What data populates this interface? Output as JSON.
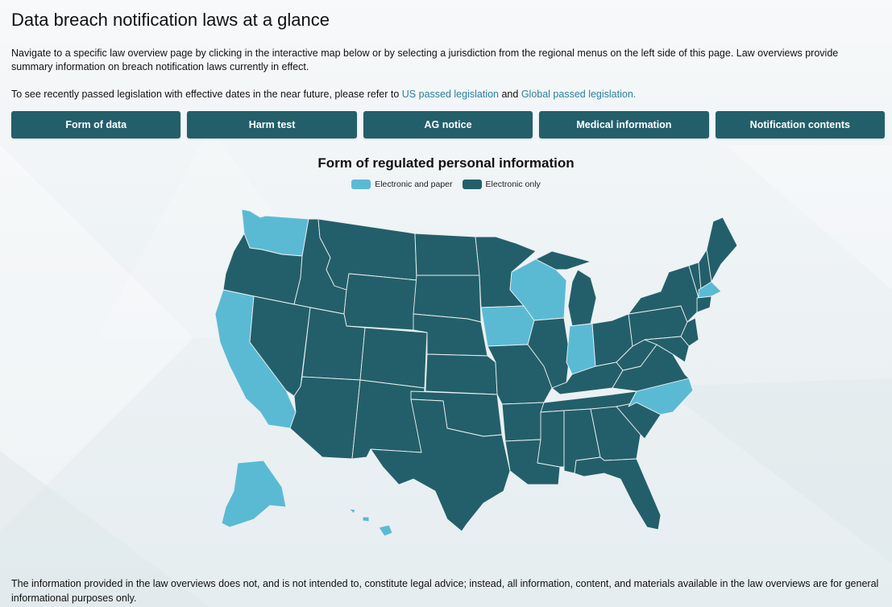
{
  "page": {
    "title": "Data breach notification laws at a glance",
    "intro": "Navigate to a specific law overview page by clicking in the interactive map below or by selecting a jurisdiction from the regional menus on the left side of this page. Law overviews provide summary information on breach notification laws currently in effect.",
    "intro2_prefix": "To see recently passed legislation with effective dates in the near future, please refer to ",
    "link_us": "US passed legislation",
    "intro2_and": " and ",
    "link_global": "Global passed legislation.",
    "footer": "The information provided in the law overviews does not, and is not intended to, constitute legal advice; instead, all information, content, and materials available in the law overviews are for general informational purposes only."
  },
  "tabs": [
    {
      "label": "Form of data"
    },
    {
      "label": "Harm test"
    },
    {
      "label": "AG notice"
    },
    {
      "label": "Medical information"
    },
    {
      "label": "Notification contents"
    }
  ],
  "map": {
    "title": "Form of regulated personal information",
    "legend": [
      {
        "label": "Electronic and paper",
        "color": "#5bbad3"
      },
      {
        "label": "Electronic only",
        "color": "#235f6a"
      }
    ],
    "electronic_and_paper_states": [
      "Washington",
      "California",
      "Iowa",
      "Wisconsin",
      "Indiana",
      "North Carolina",
      "Massachusetts",
      "Alaska",
      "Hawaii"
    ]
  }
}
